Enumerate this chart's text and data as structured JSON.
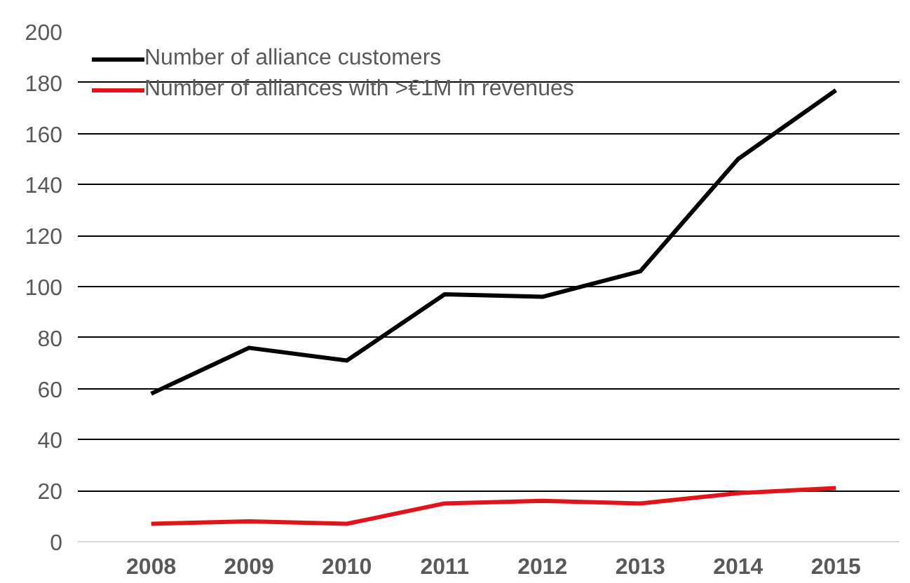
{
  "chart_data": {
    "type": "line",
    "categories": [
      "2008",
      "2009",
      "2010",
      "2011",
      "2012",
      "2013",
      "2014",
      "2015"
    ],
    "series": [
      {
        "name": "Number of alliance customers",
        "color": "#000000",
        "values": [
          58,
          76,
          71,
          97,
          96,
          106,
          150,
          177
        ]
      },
      {
        "name": "Number of alliances with >€1M in revenues",
        "color": "#e3131b",
        "values": [
          7,
          8,
          7,
          15,
          16,
          15,
          19,
          21
        ]
      }
    ],
    "ylim": [
      0,
      200
    ],
    "yticks": [
      0,
      20,
      40,
      60,
      80,
      100,
      120,
      140,
      160,
      180,
      200
    ],
    "grid": "y",
    "legend": "top left",
    "marker": "none",
    "line_style": "solid"
  }
}
